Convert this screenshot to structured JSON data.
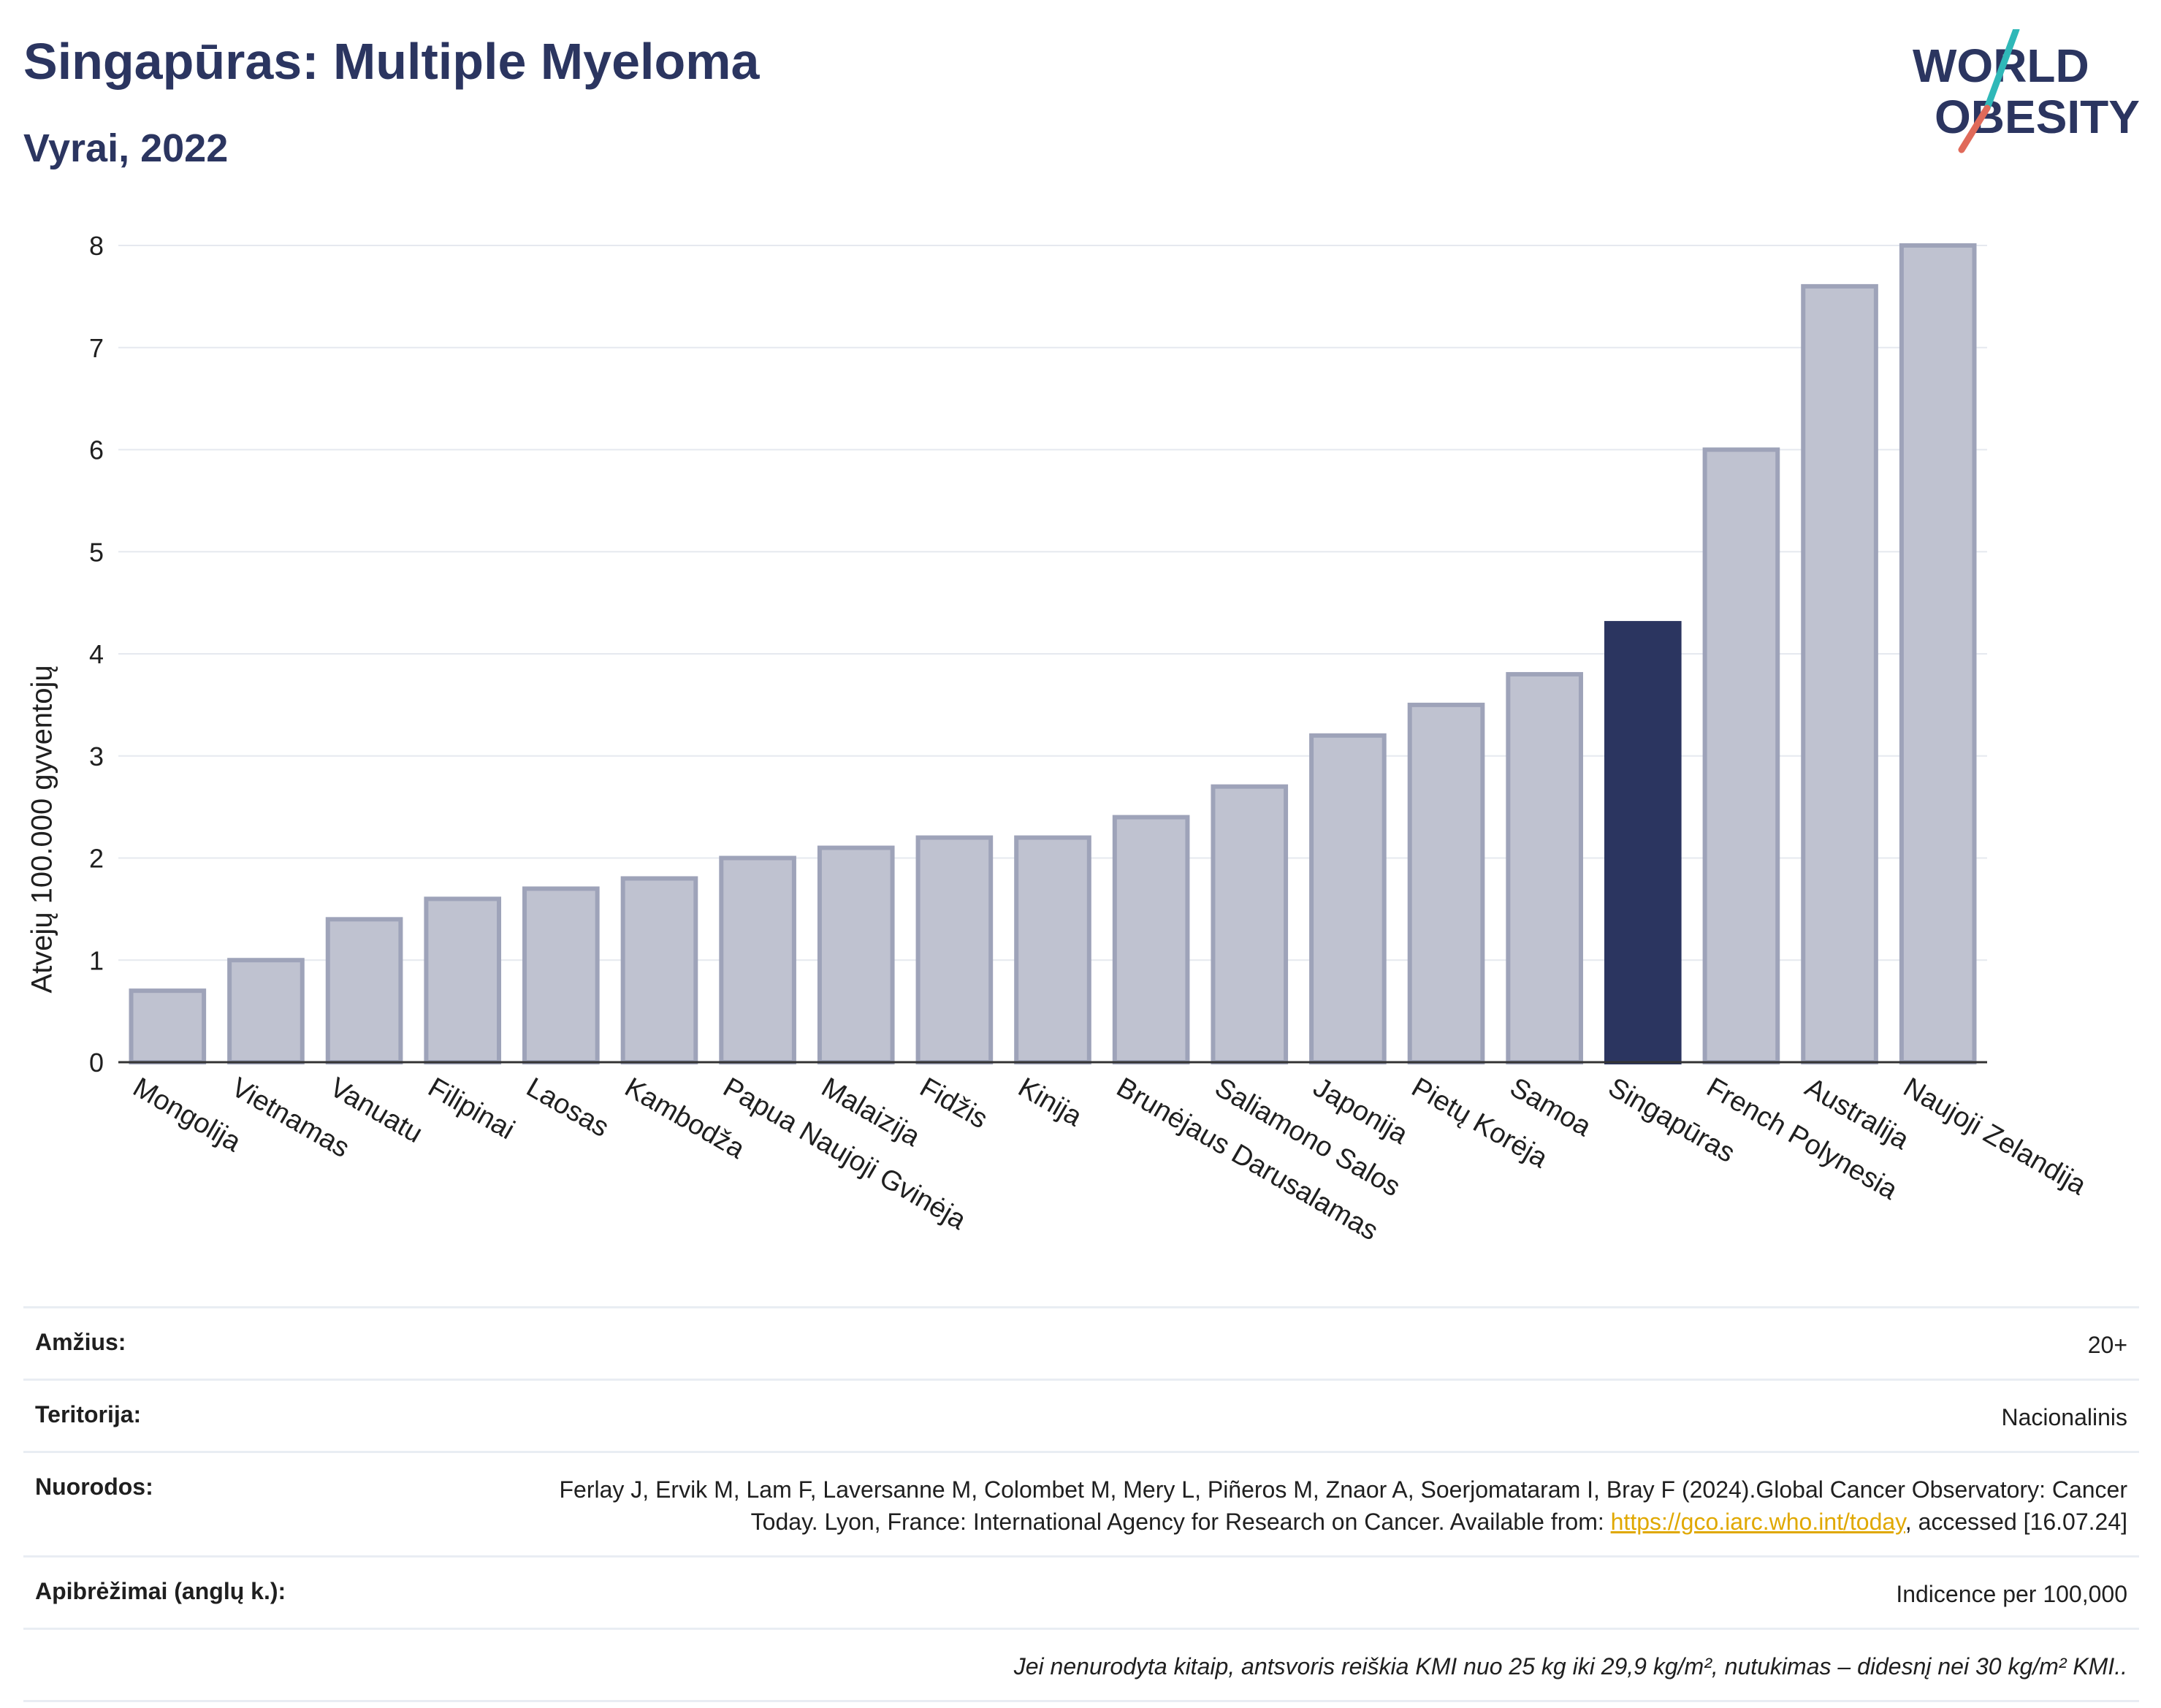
{
  "header": {
    "title": "Singapūras: Multiple Myeloma",
    "subtitle": "Vyrai, 2022"
  },
  "logo": {
    "line1": "WORLD",
    "line2": "OBESITY"
  },
  "colors": {
    "highlight": "#2b3560",
    "bar_fill": "#bfc2d0",
    "bar_stroke": "#9ea3b9",
    "link": "#e0a800"
  },
  "chart_data": {
    "type": "bar",
    "ylabel": "Atvejų 100.000 gyventojų",
    "ylim": [
      0,
      8
    ],
    "yticks": [
      0,
      1,
      2,
      3,
      4,
      5,
      6,
      7,
      8
    ],
    "grid": true,
    "highlight": "Singapūras",
    "categories": [
      "Mongolija",
      "Vietnamas",
      "Vanuatu",
      "Filipinai",
      "Laosas",
      "Kambodža",
      "Papua Naujoji Gvinėja",
      "Malaizija",
      "Fidžis",
      "Kinija",
      "Brunėjaus Darusalamas",
      "Saliamono Salos",
      "Japonija",
      "Pietų Korėja",
      "Samoa",
      "Singapūras",
      "French Polynesia",
      "Australija",
      "Naujoji Zelandija"
    ],
    "values": [
      0.7,
      1.0,
      1.4,
      1.6,
      1.7,
      1.8,
      2.0,
      2.1,
      2.2,
      2.2,
      2.4,
      2.7,
      3.2,
      3.5,
      3.8,
      4.3,
      6.0,
      7.6,
      8.0
    ]
  },
  "info": {
    "age_label": "Amžius:",
    "age_value": "20+",
    "territory_label": "Teritorija:",
    "territory_value": "Nacionalinis",
    "refs_label": "Nuorodos:",
    "refs_text": "Ferlay J, Ervik M, Lam F, Laversanne M, Colombet M, Mery L, Piñeros M, Znaor A, Soerjomataram I, Bray F (2024).Global Cancer Observatory: Cancer Today. Lyon, France: International Agency for Research on Cancer. Available from:",
    "refs_link": "https://gco.iarc.who.int/today",
    "refs_suffix": ", accessed [16.07.24]",
    "defs_label": "Apibrėžimai (anglų k.):",
    "defs_value": "Indicence per 100,000",
    "note": "Jei nenurodyta kitaip, antsvoris reiškia KMI nuo 25 kg iki 29,9 kg/m², nutukimas – didesnį nei 30 kg/m² KMI.."
  }
}
